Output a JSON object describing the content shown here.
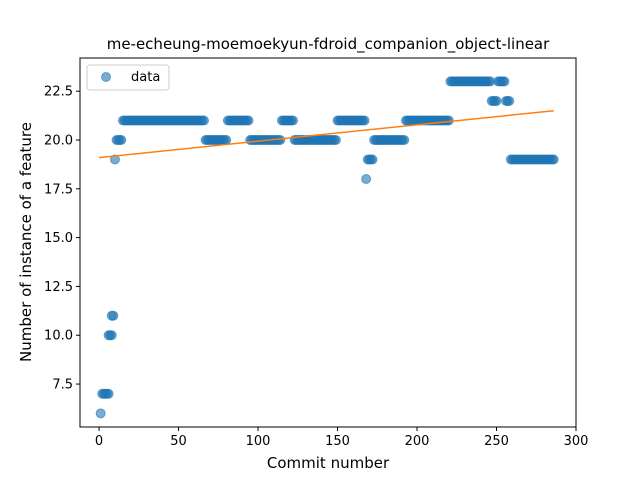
{
  "chart_data": {
    "type": "scatter",
    "title": "me-echeung-moemoekyun-fdroid_companion_object-linear",
    "xlabel": "Commit number",
    "ylabel": "Number of instance of a feature",
    "xlim": [
      -12,
      300
    ],
    "ylim": [
      5.3,
      24.2
    ],
    "xticks": [
      0,
      50,
      100,
      150,
      200,
      250,
      300
    ],
    "yticks": [
      7.5,
      10.0,
      12.5,
      15.0,
      17.5,
      20.0,
      22.5
    ],
    "legend": {
      "placement": "upper-left",
      "entries": [
        "data"
      ]
    },
    "colors": {
      "points": "#1f77b4",
      "fit": "#ff7f0e"
    },
    "series": [
      {
        "name": "data",
        "kind": "points",
        "segments": [
          {
            "x_start": 1,
            "x_end": 1,
            "y": 6
          },
          {
            "x_start": 2,
            "x_end": 6,
            "y": 7
          },
          {
            "x_start": 6,
            "x_end": 8,
            "y": 10
          },
          {
            "x_start": 8,
            "x_end": 9,
            "y": 11
          },
          {
            "x_start": 10,
            "x_end": 10,
            "y": 19
          },
          {
            "x_start": 11,
            "x_end": 14,
            "y": 20
          },
          {
            "x_start": 15,
            "x_end": 66,
            "y": 21
          },
          {
            "x_start": 67,
            "x_end": 80,
            "y": 20
          },
          {
            "x_start": 81,
            "x_end": 94,
            "y": 21
          },
          {
            "x_start": 95,
            "x_end": 114,
            "y": 20
          },
          {
            "x_start": 115,
            "x_end": 122,
            "y": 21
          },
          {
            "x_start": 123,
            "x_end": 149,
            "y": 20
          },
          {
            "x_start": 150,
            "x_end": 167,
            "y": 21
          },
          {
            "x_start": 168,
            "x_end": 168,
            "y": 18
          },
          {
            "x_start": 169,
            "x_end": 172,
            "y": 19
          },
          {
            "x_start": 173,
            "x_end": 192,
            "y": 20
          },
          {
            "x_start": 193,
            "x_end": 220,
            "y": 21
          },
          {
            "x_start": 221,
            "x_end": 246,
            "y": 23
          },
          {
            "x_start": 247,
            "x_end": 250,
            "y": 22
          },
          {
            "x_start": 251,
            "x_end": 255,
            "y": 23
          },
          {
            "x_start": 256,
            "x_end": 258,
            "y": 22
          },
          {
            "x_start": 259,
            "x_end": 286,
            "y": 19
          }
        ]
      },
      {
        "kind": "line",
        "x": [
          0,
          286
        ],
        "y": [
          19.1,
          21.5
        ]
      }
    ]
  }
}
